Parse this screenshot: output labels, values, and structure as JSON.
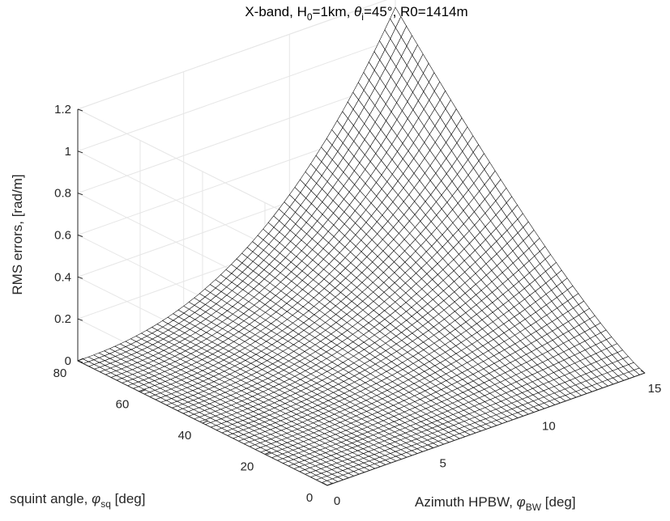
{
  "chart_data": {
    "type": "surface-3d-mesh",
    "title": {
      "parts": [
        "X-band, H",
        "0",
        "=1km, ",
        "θ",
        "i",
        "=45°, R0=1414m"
      ]
    },
    "xlabel": {
      "main": "Azimuth HPBW, ",
      "symbol": "φ",
      "sub": "BW",
      "unit": " [deg]"
    },
    "ylabel": {
      "main": "squint angle, ",
      "symbol": "φ",
      "sub": "sq",
      "unit": " [deg]"
    },
    "zlabel": "RMS errors, [rad/m]",
    "xlim": [
      0,
      15
    ],
    "ylim": [
      0,
      80
    ],
    "zlim": [
      0,
      1.2
    ],
    "xticks": [
      "0",
      "5",
      "10",
      "15"
    ],
    "xtick_values": [
      0,
      5,
      10,
      15
    ],
    "yticks": [
      "0",
      "20",
      "40",
      "60",
      "80"
    ],
    "ytick_values": [
      0,
      20,
      40,
      60,
      80
    ],
    "zticks": [
      "0",
      "0.2",
      "0.4",
      "0.6",
      "0.8",
      "1",
      "1.2"
    ],
    "ztick_values": [
      0,
      0.2,
      0.4,
      0.6,
      0.8,
      1.0,
      1.2
    ],
    "grid": true,
    "mesh": {
      "x_steps": 60,
      "y_steps": 45
    },
    "surface_samples": [
      {
        "x": 15,
        "y": 0,
        "z": 0.0
      },
      {
        "x": 15,
        "y": 20,
        "z": 0.13
      },
      {
        "x": 15,
        "y": 45,
        "z": 0.5
      },
      {
        "x": 15,
        "y": 62,
        "z": 0.9
      },
      {
        "x": 15,
        "y": 80,
        "z": 1.15
      },
      {
        "x": 10,
        "y": 80,
        "z": 0.35
      },
      {
        "x": 5,
        "y": 80,
        "z": 0.08
      },
      {
        "x": 0,
        "y": 80,
        "z": 0.0
      }
    ],
    "colors": {
      "mesh_line": "#000000",
      "mesh_face": "#ffffff",
      "grid": "#e6e6e6",
      "axis": "#262626"
    }
  }
}
